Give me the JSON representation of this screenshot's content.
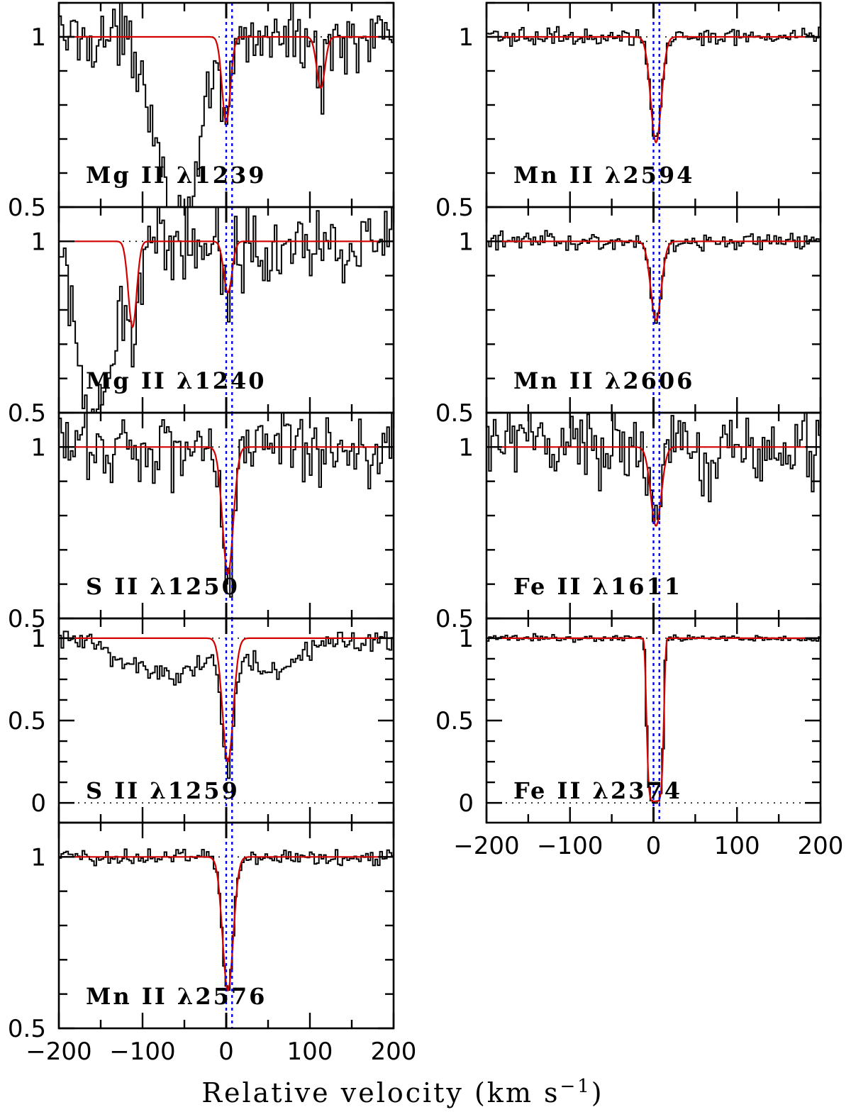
{
  "chart_data": {
    "type": "line",
    "xlabel": "Relative velocity (km s",
    "xlabel_sup": "−1",
    "xlabel_close": ")",
    "xlim": [
      -200,
      200
    ],
    "x_ticks": [
      "−200",
      "−100",
      "0",
      "100",
      "200"
    ],
    "reference_lines_kms": [
      0,
      7
    ],
    "colors": {
      "data": "#000000",
      "fit": "#d40000",
      "reference": "#0000ff",
      "axes": "#000000"
    },
    "panels": [
      {
        "label": "Mg II λ1239",
        "column": "left",
        "ylim": [
          0.5,
          1.1
        ],
        "yticks": [
          "1",
          "0.5"
        ],
        "fit_components": [
          {
            "center": 0,
            "depth": 0.25,
            "width": 7
          },
          {
            "center": 113,
            "depth": 0.15,
            "width": 7
          }
        ],
        "data_features": [
          {
            "center": -55,
            "depth": 0.55,
            "width": 35
          },
          {
            "center": 0,
            "depth": 0.25,
            "width": 7
          },
          {
            "center": 113,
            "depth": 0.15,
            "width": 7
          }
        ],
        "noise": 0.06
      },
      {
        "label": "Mg II λ1240",
        "column": "left",
        "ylim": [
          0.5,
          1.1
        ],
        "yticks": [
          "1",
          "0.5"
        ],
        "fit_components": [
          {
            "center": -112,
            "depth": 0.25,
            "width": 7
          },
          {
            "center": 2,
            "depth": 0.15,
            "width": 7
          }
        ],
        "data_features": [
          {
            "center": -155,
            "depth": 0.55,
            "width": 30
          },
          {
            "center": -112,
            "depth": 0.25,
            "width": 7
          },
          {
            "center": 2,
            "depth": 0.15,
            "width": 7
          }
        ],
        "noise": 0.07
      },
      {
        "label": "S II λ1250",
        "column": "left",
        "ylim": [
          0.5,
          1.1
        ],
        "yticks": [
          "1",
          "0.5"
        ],
        "fit_components": [
          {
            "center": 2,
            "depth": 0.37,
            "width": 9
          }
        ],
        "data_features": [
          {
            "center": 2,
            "depth": 0.37,
            "width": 9
          }
        ],
        "noise": 0.07
      },
      {
        "label": "S II λ1259",
        "column": "left",
        "ylim": [
          -0.12,
          1.12
        ],
        "yticks": [
          "1",
          "0.5",
          "0"
        ],
        "fit_components": [
          {
            "center": 2,
            "depth": 0.75,
            "width": 9
          }
        ],
        "data_features": [
          {
            "center": 2,
            "depth": 0.75,
            "width": 9
          },
          {
            "center": -70,
            "depth": 0.22,
            "width": 70
          },
          {
            "center": 60,
            "depth": 0.2,
            "width": 45
          }
        ],
        "noise": 0.05
      },
      {
        "label": "Mn II λ2576",
        "column": "left",
        "ylim": [
          0.5,
          1.1
        ],
        "yticks": [
          "1",
          "0.5"
        ],
        "fit_components": [
          {
            "center": 2,
            "depth": 0.39,
            "width": 9
          }
        ],
        "data_features": [
          {
            "center": 2,
            "depth": 0.39,
            "width": 9
          }
        ],
        "noise": 0.015
      },
      {
        "label": "Mn II λ2594",
        "column": "right",
        "ylim": [
          0.5,
          1.1
        ],
        "yticks": [
          "1",
          "0.5"
        ],
        "fit_components": [
          {
            "center": 3,
            "depth": 0.31,
            "width": 9
          }
        ],
        "data_features": [
          {
            "center": 3,
            "depth": 0.31,
            "width": 9
          }
        ],
        "noise": 0.015
      },
      {
        "label": "Mn II λ2606",
        "column": "right",
        "ylim": [
          0.5,
          1.1
        ],
        "yticks": [
          "1",
          "0.5"
        ],
        "fit_components": [
          {
            "center": 3,
            "depth": 0.23,
            "width": 9
          }
        ],
        "data_features": [
          {
            "center": 3,
            "depth": 0.23,
            "width": 9
          }
        ],
        "noise": 0.015
      },
      {
        "label": "Fe II λ1611",
        "column": "right",
        "ylim": [
          0.5,
          1.1
        ],
        "yticks": [
          "1",
          "0.5"
        ],
        "fit_components": [
          {
            "center": 3,
            "depth": 0.23,
            "width": 9
          }
        ],
        "data_features": [
          {
            "center": 3,
            "depth": 0.23,
            "width": 9
          }
        ],
        "noise": 0.07
      },
      {
        "label": "Fe II λ2374",
        "column": "right",
        "ylim": [
          -0.12,
          1.12
        ],
        "yticks": [
          "1",
          "0.5",
          "0"
        ],
        "fit_components": [
          {
            "center": 2,
            "depth": 0.99,
            "width": 11,
            "saturated": true
          }
        ],
        "data_features": [
          {
            "center": 2,
            "depth": 0.99,
            "width": 11,
            "saturated": true
          }
        ],
        "noise": 0.012
      }
    ]
  }
}
